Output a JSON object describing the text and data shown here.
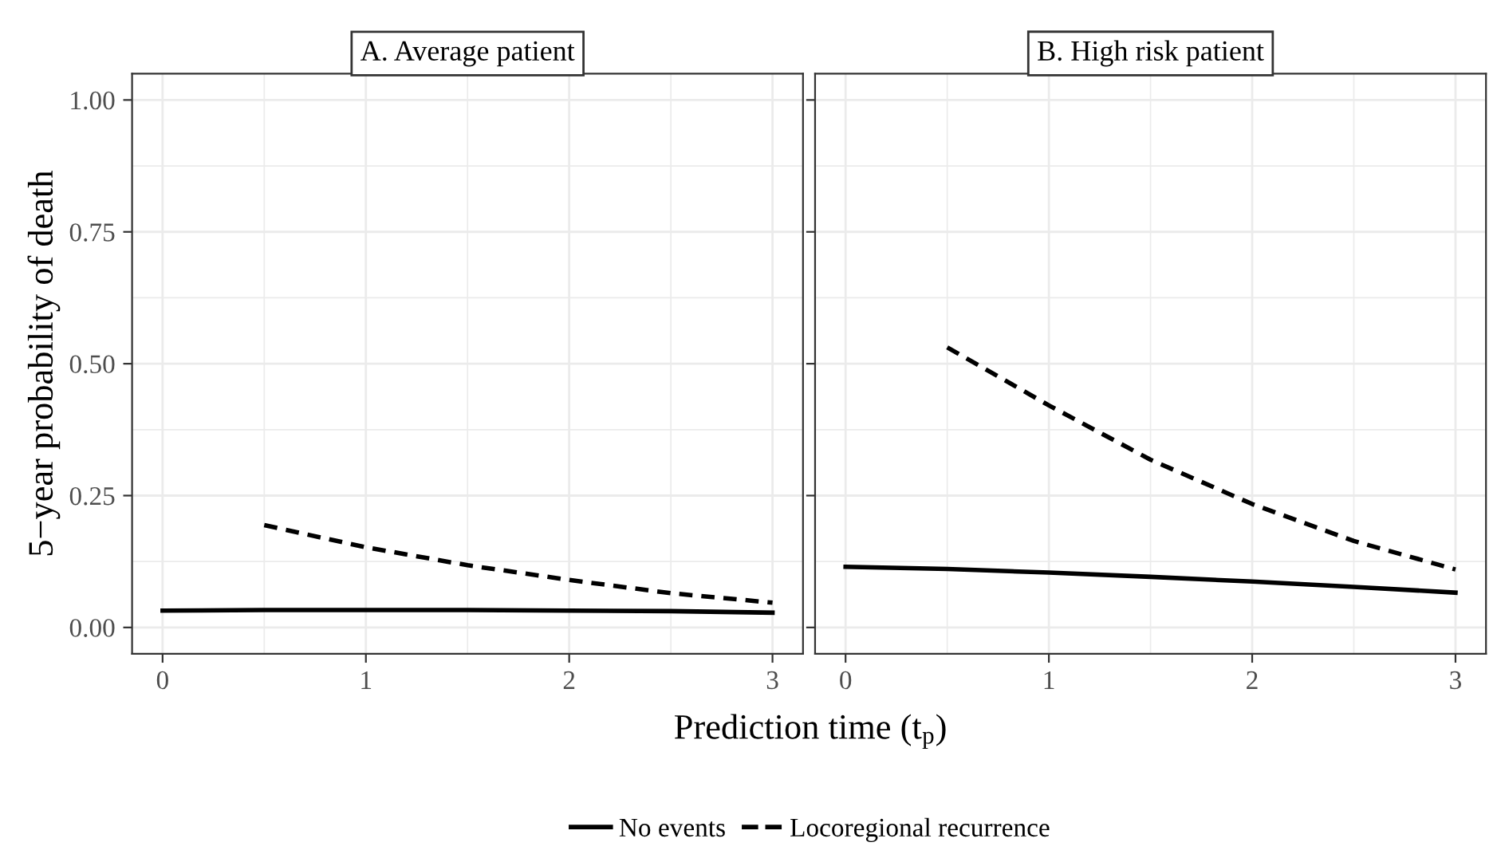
{
  "chart_data": [
    {
      "type": "line",
      "title": "A. Average patient",
      "ylabel": "5−year probability of death",
      "xlabel": "Prediction time (t$_{p}$)",
      "xlim": [
        -0.15,
        3.15
      ],
      "xticks": [
        0,
        1,
        2,
        3
      ],
      "ylim": [
        -0.05,
        1.05
      ],
      "yticks": [
        {
          "value": 0,
          "label": "0.00"
        },
        {
          "value": 0.25,
          "label": "0.25"
        },
        {
          "value": 0.5,
          "label": "0.50"
        },
        {
          "value": 0.75,
          "label": "0.75"
        },
        {
          "value": 1,
          "label": "1.00"
        }
      ],
      "grid": true,
      "legend": "bottom",
      "series": [
        {
          "name": "No events",
          "color": "#000000",
          "line_style": "solid",
          "x": [
            0,
            0.5,
            1,
            1.5,
            2,
            2.5,
            3
          ],
          "values": [
            0.032,
            0.033,
            0.033,
            0.033,
            0.032,
            0.031,
            0.028
          ]
        },
        {
          "name": "Locoregional recurrence",
          "color": "#000000",
          "line_style": "dashed",
          "x": [
            0.5,
            1,
            1.5,
            2,
            2.5,
            3
          ],
          "values": [
            0.194,
            0.152,
            0.118,
            0.09,
            0.065,
            0.047
          ]
        }
      ]
    },
    {
      "type": "line",
      "title": "B. High risk patient",
      "tick_labels": "x",
      "xlim": [
        -0.15,
        3.15
      ],
      "xticks": [
        0,
        1,
        2,
        3
      ],
      "ylim": [
        -0.05,
        1.05
      ],
      "yticks": [
        0,
        0.25,
        0.5,
        0.75,
        1
      ],
      "grid": true,
      "series": [
        {
          "name": "No events",
          "color": "#000000",
          "line_style": "solid",
          "x": [
            0,
            0.5,
            1,
            1.5,
            2,
            2.5,
            3
          ],
          "values": [
            0.115,
            0.111,
            0.104,
            0.096,
            0.087,
            0.077,
            0.066
          ]
        },
        {
          "name": "Locoregional recurrence",
          "color": "#000000",
          "line_style": "dashed",
          "x": [
            0.5,
            1,
            1.5,
            2,
            2.5,
            3
          ],
          "values": [
            0.531,
            0.421,
            0.318,
            0.234,
            0.164,
            0.11
          ]
        }
      ]
    }
  ]
}
